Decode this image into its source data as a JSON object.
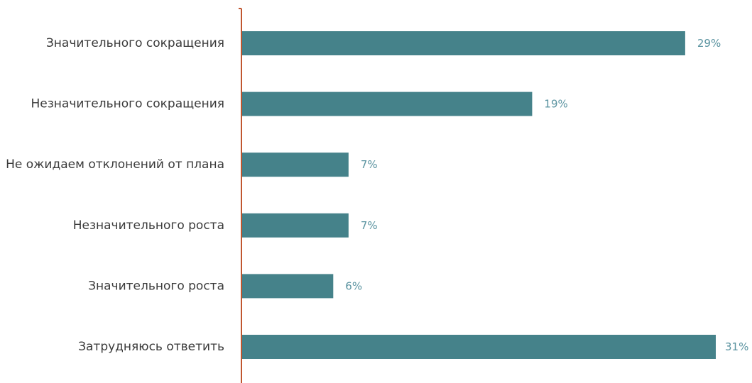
{
  "chart_data": {
    "type": "bar",
    "orientation": "horizontal",
    "categories": [
      "Значительного сокращения",
      "Незначительного сокращения",
      "Не ожидаем отклонений от плана",
      "Незначительного роста",
      "Значительного роста",
      "Затрудняюсь ответить"
    ],
    "values": [
      29,
      19,
      7,
      7,
      6,
      31
    ],
    "value_labels": [
      "29%",
      "19%",
      "7%",
      "7%",
      "6%",
      "31%"
    ],
    "unit": "%",
    "xlim": [
      0,
      33
    ],
    "grid": false,
    "legend": "none",
    "bar_color": "#45828a",
    "label_color": "#5a93a0",
    "axis_color": "#c0562f"
  }
}
